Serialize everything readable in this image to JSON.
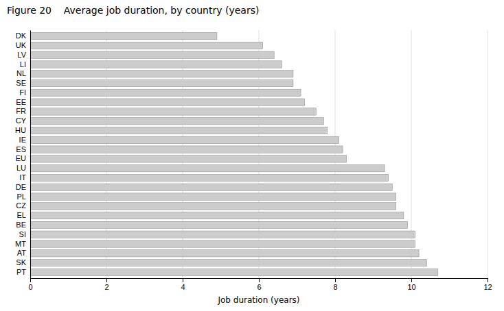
{
  "chart_data": {
    "type": "bar",
    "orientation": "horizontal",
    "title": "Figure 20    Average job duration, by country (years)",
    "xlabel": "Job duration (years)",
    "categories": [
      "DK",
      "UK",
      "LV",
      "LI",
      "NL",
      "SE",
      "FI",
      "EE",
      "FR",
      "CY",
      "HU",
      "IE",
      "ES",
      "EU",
      "LU",
      "IT",
      "DE",
      "PL",
      "CZ",
      "EL",
      "BE",
      "SI",
      "MT",
      "AT",
      "SK",
      "PT"
    ],
    "values": [
      4.9,
      6.1,
      6.4,
      6.6,
      6.9,
      6.9,
      7.1,
      7.2,
      7.5,
      7.7,
      7.8,
      8.1,
      8.2,
      8.3,
      9.3,
      9.4,
      9.5,
      9.6,
      9.6,
      9.8,
      9.9,
      10.1,
      10.1,
      10.2,
      10.4,
      10.7
    ],
    "color": "#cccccc",
    "xlim": [
      0,
      12
    ],
    "xticks": [
      0,
      2,
      4,
      6,
      8,
      10,
      12
    ],
    "grid": true
  }
}
